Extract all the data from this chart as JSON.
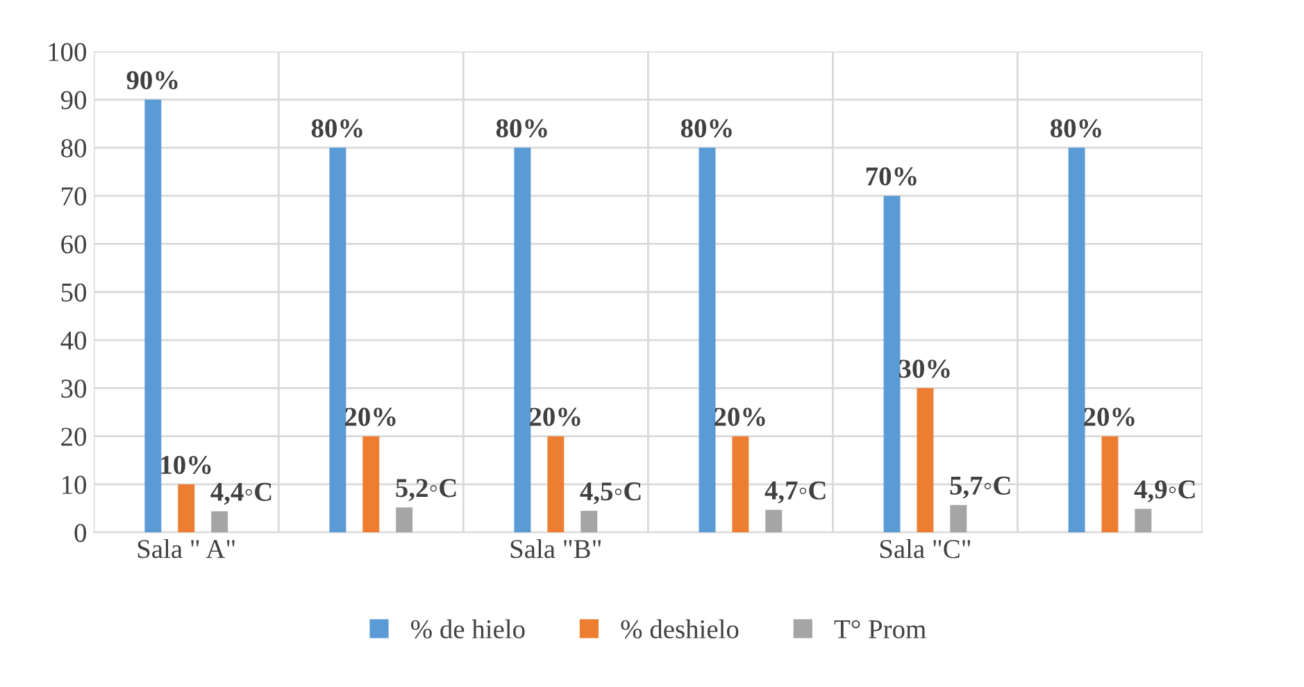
{
  "chart_data": {
    "type": "bar",
    "categories": [
      "Sala \" A\"",
      null,
      "Sala \"B\"",
      null,
      "Sala \"C\"",
      null
    ],
    "series": [
      {
        "name": "% de hielo",
        "color": "#5b9bd5",
        "values": [
          90,
          80,
          80,
          80,
          70,
          80
        ],
        "value_labels": [
          "90%",
          "80%",
          "80%",
          "80%",
          "70%",
          "80%"
        ]
      },
      {
        "name": "% deshielo",
        "color": "#ed7d31",
        "values": [
          10,
          20,
          20,
          20,
          30,
          20
        ],
        "value_labels": [
          "10%",
          "20%",
          "20%",
          "20%",
          "30%",
          "20%"
        ]
      },
      {
        "name": "T° Prom",
        "color": "#a5a5a5",
        "values": [
          4.4,
          5.2,
          4.5,
          4.7,
          5.7,
          4.9
        ],
        "value_labels": [
          "4,4◦C",
          "5,2◦C",
          "4,5◦C",
          "4,7◦C",
          "5,7◦C",
          "4,9◦C"
        ]
      }
    ],
    "ylim": [
      0,
      100
    ],
    "yticks": [
      0,
      10,
      20,
      30,
      40,
      50,
      60,
      70,
      80,
      90,
      100
    ],
    "grid": true,
    "legend": "bottom"
  }
}
